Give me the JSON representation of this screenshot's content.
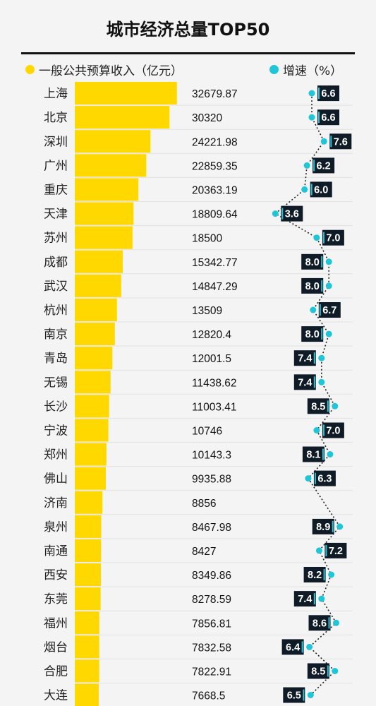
{
  "header": {
    "title": "城市经济总量TOP50",
    "legend_left": "一般公共预算收入（亿元）",
    "legend_right": "增速（%）"
  },
  "colors": {
    "bar": "#ffd800",
    "dot": "#1ec6d8",
    "badge_bg": "#0f1b26",
    "badge_border": "#27c3d6"
  },
  "chart_data": {
    "type": "bar",
    "title": "城市经济总量TOP50",
    "categories": [
      "上海",
      "北京",
      "深圳",
      "广州",
      "重庆",
      "天津",
      "苏州",
      "成都",
      "武汉",
      "杭州",
      "南京",
      "青岛",
      "无锡",
      "长沙",
      "宁波",
      "郑州",
      "佛山",
      "济南",
      "泉州",
      "南通",
      "西安",
      "东莞",
      "福州",
      "烟台",
      "合肥",
      "大连"
    ],
    "series": [
      {
        "name": "一般公共预算收入（亿元）",
        "values": [
          32679.87,
          30320,
          24221.98,
          22859.35,
          20363.19,
          18809.64,
          18500,
          15342.77,
          14847.29,
          13509,
          12820.4,
          12001.5,
          11438.62,
          11003.41,
          10746,
          10143.3,
          9935.88,
          8856,
          8467.98,
          8427,
          8349.86,
          8278.59,
          7856.81,
          7832.58,
          7822.91,
          7668.5
        ],
        "labels": [
          "32679.87",
          "30320",
          "24221.98",
          "22859.35",
          "20363.19",
          "18809.64",
          "18500",
          "15342.77",
          "14847.29",
          "13509",
          "12820.4",
          "12001.5",
          "11438.62",
          "11003.41",
          "10746",
          "10143.3",
          "9935.88",
          "8856",
          "8467.98",
          "8427",
          "8349.86",
          "8278.59",
          "7856.81",
          "7832.58",
          "7822.91",
          "7668.5"
        ]
      },
      {
        "name": "增速（%）",
        "values": [
          6.6,
          6.6,
          7.6,
          6.2,
          6.0,
          3.6,
          7.0,
          8.0,
          8.0,
          6.7,
          8.0,
          7.4,
          7.4,
          8.5,
          7.0,
          8.1,
          6.3,
          null,
          8.9,
          7.2,
          8.2,
          7.4,
          8.6,
          6.4,
          8.5,
          6.5
        ],
        "labels": [
          "6.6",
          "6.6",
          "7.6",
          "6.2",
          "6.0",
          "3.6",
          "7.0",
          "8.0",
          "8.0",
          "6.7",
          "8.0",
          "7.4",
          "7.4",
          "8.5",
          "7.0",
          "8.1",
          "6.3",
          "",
          "8.9",
          "7.2",
          "8.2",
          "7.4",
          "8.6",
          "6.4",
          "8.5",
          "6.5"
        ],
        "label_side": [
          "right",
          "right",
          "right",
          "right",
          "right",
          "right",
          "right",
          "left",
          "left",
          "right",
          "left",
          "left",
          "left",
          "left",
          "right",
          "left",
          "right",
          "",
          "left",
          "right",
          "left",
          "left",
          "left",
          "left",
          "left",
          "left"
        ]
      }
    ],
    "xlim": [
      0,
      34000
    ],
    "growth_xlim": [
      3.0,
      9.5
    ]
  }
}
